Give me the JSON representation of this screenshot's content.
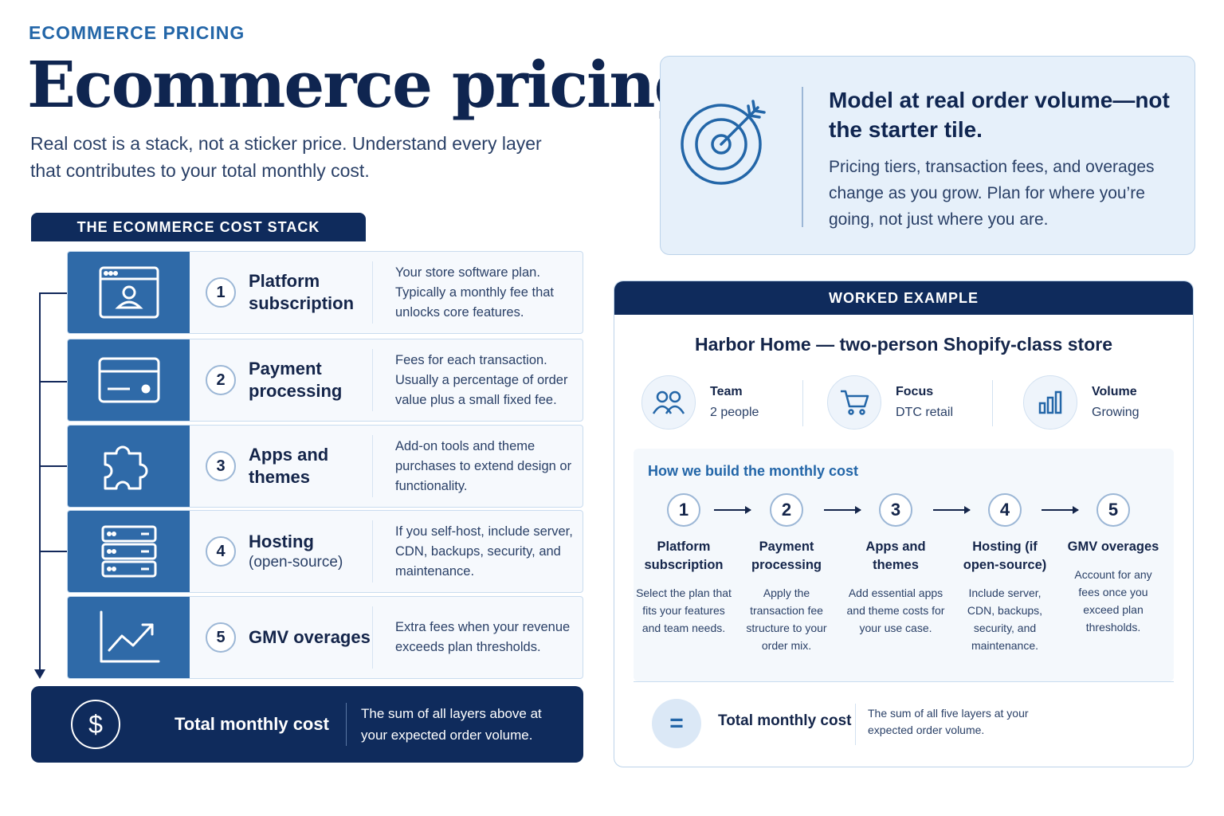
{
  "header": {
    "eyebrow": "ECOMMERCE PRICING",
    "title": "Ecommerce pricing",
    "intro": "Real cost is a stack, not a sticker price. Understand every layer that contributes to your total monthly cost."
  },
  "cost_stack": {
    "heading": "THE ECOMMERCE COST STACK",
    "layers": [
      {
        "number": "1",
        "title": "Platform subscription",
        "subtitle": "",
        "description": "Your store software plan. Typically a monthly fee that unlocks core features.",
        "icon": "browser-user-icon"
      },
      {
        "number": "2",
        "title": "Payment processing",
        "subtitle": "",
        "description": "Fees for each transaction. Usually a percentage of order value plus a small fixed fee.",
        "icon": "credit-card-icon"
      },
      {
        "number": "3",
        "title": "Apps and themes",
        "subtitle": "",
        "description": "Add-on tools and theme purchases to extend design or functionality.",
        "icon": "puzzle-icon"
      },
      {
        "number": "4",
        "title": "Hosting",
        "subtitle": "(open-source)",
        "description": "If you self-host, include server, CDN, backups, security, and maintenance.",
        "icon": "server-icon"
      },
      {
        "number": "5",
        "title": "GMV overages",
        "subtitle": "",
        "description": "Extra fees when your revenue exceeds plan thresholds.",
        "icon": "trend-chart-icon"
      }
    ],
    "total": {
      "symbol": "$",
      "label": "Total monthly cost",
      "description": "The sum of all layers above at your expected order volume."
    }
  },
  "callout": {
    "title": "Model at real order volume—not the starter tile.",
    "body": "Pricing tiers, transaction fees, and overages change as you grow. Plan for where you’re going, not just where you are.",
    "icon": "target-icon"
  },
  "worked_example": {
    "heading": "WORKED EXAMPLE",
    "title": "Harbor Home — two-person Shopify-class store",
    "facts": [
      {
        "label": "Team",
        "value": "2 people",
        "icon": "people-icon"
      },
      {
        "label": "Focus",
        "value": "DTC retail",
        "icon": "cart-icon"
      },
      {
        "label": "Volume",
        "value": "Growing",
        "icon": "bar-chart-icon"
      }
    ],
    "steps_heading": "How we build the monthly cost",
    "steps": [
      {
        "number": "1",
        "title": "Platform subscription",
        "description": "Select the plan that fits your features and team needs."
      },
      {
        "number": "2",
        "title": "Payment processing",
        "description": "Apply the transaction fee structure to your order mix."
      },
      {
        "number": "3",
        "title": "Apps and themes",
        "description": "Add essential apps and theme costs for your use case."
      },
      {
        "number": "4",
        "title": "Hosting (if open-source)",
        "description": "Include server, CDN, backups, security, and maintenance."
      },
      {
        "number": "5",
        "title": "GMV overages",
        "description": "Account for any fees once you exceed plan thresholds."
      }
    ],
    "total": {
      "symbol": "=",
      "label": "Total monthly cost",
      "description": "The sum of all five layers at your expected order volume."
    }
  },
  "colors": {
    "navy": "#0f2b5c",
    "accent_blue": "#2366a8",
    "icon_blue": "#2f6aa8",
    "light_panel": "#e6f0fa"
  }
}
